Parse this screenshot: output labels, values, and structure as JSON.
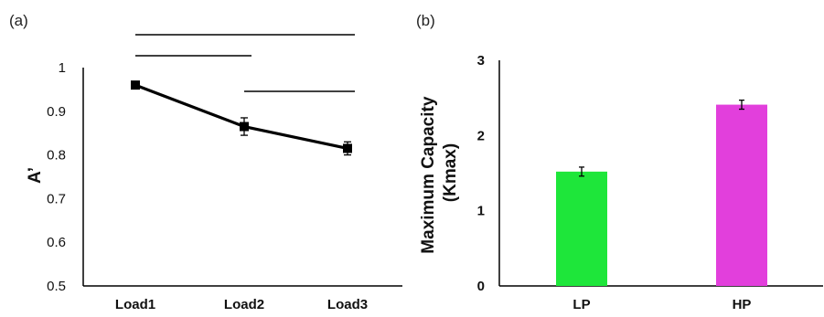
{
  "chart_data": [
    {
      "panel_label": "(a)",
      "type": "line",
      "categories": [
        "Load1",
        "Load2",
        "Load3"
      ],
      "series": [
        {
          "values": [
            0.96,
            0.865,
            0.815
          ],
          "errors": [
            0.008,
            0.02,
            0.015
          ],
          "color": "#000000"
        }
      ],
      "ylabel": "A’",
      "ylim": [
        0.5,
        1.0
      ],
      "yticks": [
        "0.5",
        "0.6",
        "0.7",
        "0.8",
        "0.9",
        "1"
      ],
      "significance_brackets": [
        {
          "from": "Load1",
          "to": "Load3"
        },
        {
          "from": "Load1",
          "to": "Load2"
        },
        {
          "from": "Load2",
          "to": "Load3"
        }
      ],
      "grid": false
    },
    {
      "panel_label": "(b)",
      "type": "bar",
      "categories": [
        "LP",
        "HP"
      ],
      "values": [
        1.52,
        2.41
      ],
      "errors": [
        0.06,
        0.06
      ],
      "colors": [
        "#1ee63a",
        "#e23fdc"
      ],
      "ylabel_lines": [
        "Maximum Capacity",
        "(Kmax)"
      ],
      "ylim": [
        0,
        3
      ],
      "yticks": [
        "0",
        "1",
        "2",
        "3"
      ],
      "grid": false
    }
  ]
}
